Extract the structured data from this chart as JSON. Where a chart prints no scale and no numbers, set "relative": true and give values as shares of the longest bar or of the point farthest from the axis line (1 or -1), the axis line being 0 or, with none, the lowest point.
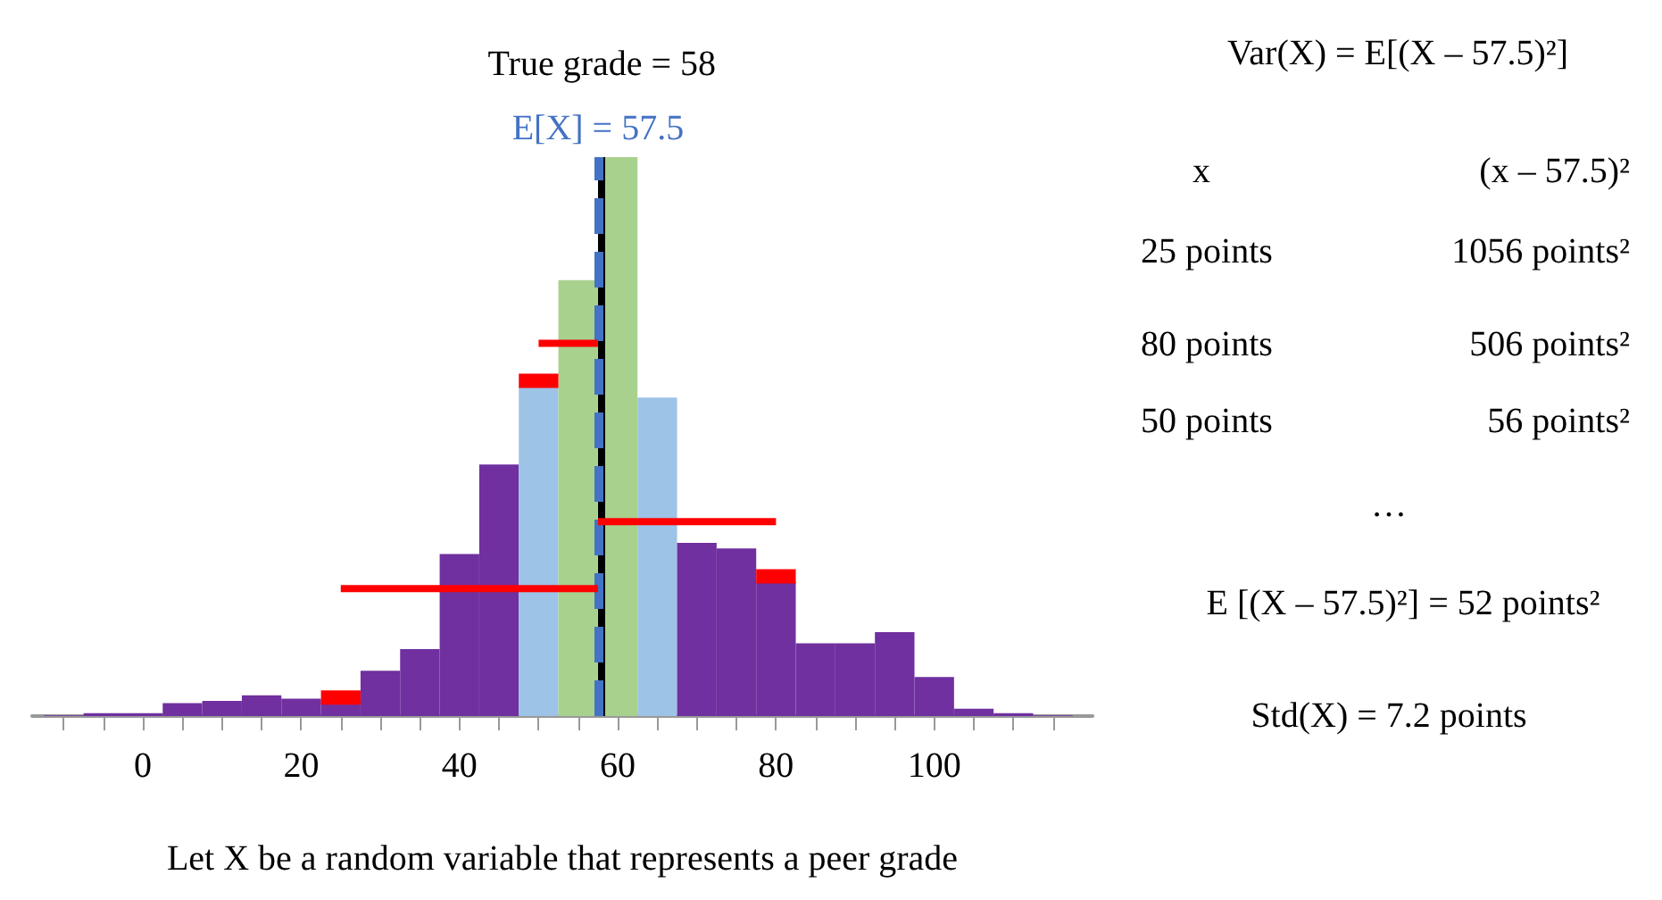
{
  "chart_data": {
    "type": "histogram",
    "xlabel": "Let X be a random variable that represents a peer grade",
    "relative": true,
    "bins": [
      -12.5,
      -7.5,
      -2.5,
      2.5,
      7.5,
      12.5,
      17.5,
      22.5,
      27.5,
      32.5,
      37.5,
      42.5,
      47.5,
      52.5,
      57.5,
      62.5,
      67.5,
      72.5,
      77.5,
      82.5,
      87.5,
      92.5,
      97.5,
      102.5,
      107.5,
      112.5,
      117.5
    ],
    "values": [
      0.001,
      0.005,
      0.005,
      0.023,
      0.027,
      0.037,
      0.031,
      0.028,
      0.081,
      0.12,
      0.29,
      0.45,
      0.59,
      0.78,
      1,
      0.57,
      0.31,
      0.3,
      0.24,
      0.13,
      0.13,
      0.15,
      0.07,
      0.013,
      0.005,
      0.001
    ],
    "colors": [
      "#7030a0",
      "#7030a0",
      "#7030a0",
      "#7030a0",
      "#7030a0",
      "#7030a0",
      "#7030a0",
      "#7030a0",
      "#7030a0",
      "#7030a0",
      "#7030a0",
      "#7030a0",
      "#9dc3e6",
      "#a9d18e",
      "#a9d18e",
      "#9dc3e6",
      "#7030a0",
      "#7030a0",
      "#7030a0",
      "#7030a0",
      "#7030a0",
      "#7030a0",
      "#7030a0",
      "#7030a0",
      "#7030a0",
      "#7030a0"
    ],
    "series": [
      {
        "type": "line",
        "color": "#ff0000",
        "x": [
          25,
          57.5,
          null,
          57.5,
          80,
          null,
          50,
          57.5
        ],
        "values": [
          0.228,
          0.228,
          null,
          0.348,
          0.348,
          null,
          0.667,
          0.667
        ]
      },
      {
        "type": "line",
        "color": "#ff0000",
        "x": [
          22.5,
          27.5,
          null,
          47.5,
          52.5,
          null,
          77.5,
          82.5
        ],
        "values": [
          0.033,
          0.033,
          null,
          0.6,
          0.6,
          null,
          0.25,
          0.25
        ]
      }
    ],
    "xlim": [
      -14,
      120
    ],
    "xticks": [
      {
        "value": -10,
        "label": null
      },
      {
        "value": -5,
        "label": null
      },
      0,
      {
        "value": 5,
        "label": null
      },
      {
        "value": 10,
        "label": null
      },
      {
        "value": 15,
        "label": null
      },
      20,
      {
        "value": 25,
        "label": null
      },
      {
        "value": 30,
        "label": null
      },
      {
        "value": 35,
        "label": null
      },
      40,
      {
        "value": 45,
        "label": null
      },
      {
        "value": 50,
        "label": null
      },
      {
        "value": 55,
        "label": null
      },
      60,
      {
        "value": 65,
        "label": null
      },
      {
        "value": 70,
        "label": null
      },
      {
        "value": 75,
        "label": null
      },
      80,
      {
        "value": 85,
        "label": null
      },
      {
        "value": 90,
        "label": null
      },
      {
        "value": 95,
        "label": null
      },
      100,
      {
        "value": 105,
        "label": null
      },
      {
        "value": 110,
        "label": null
      },
      {
        "value": 115,
        "label": null
      }
    ],
    "ref_lines": [
      {
        "axis": "x",
        "value": 58,
        "label": "True grade = 58",
        "color": "#000000",
        "line_style": "solid"
      },
      {
        "axis": "x",
        "value": 57.5,
        "label": "E[X] = 57.5",
        "color": "#4472c4",
        "line_style": "dashed"
      }
    ],
    "annotations": [
      "Var(X) = E[(X – 57.5)²]",
      "x",
      "(x – 57.5)²",
      "25 points",
      "1056 points²",
      "80 points",
      "506 points²",
      "50 points",
      "56 points²",
      "…",
      "E [(X – 57.5)²] = 52 points²",
      "Std(X) = 7.2 points"
    ],
    "grid": false
  }
}
